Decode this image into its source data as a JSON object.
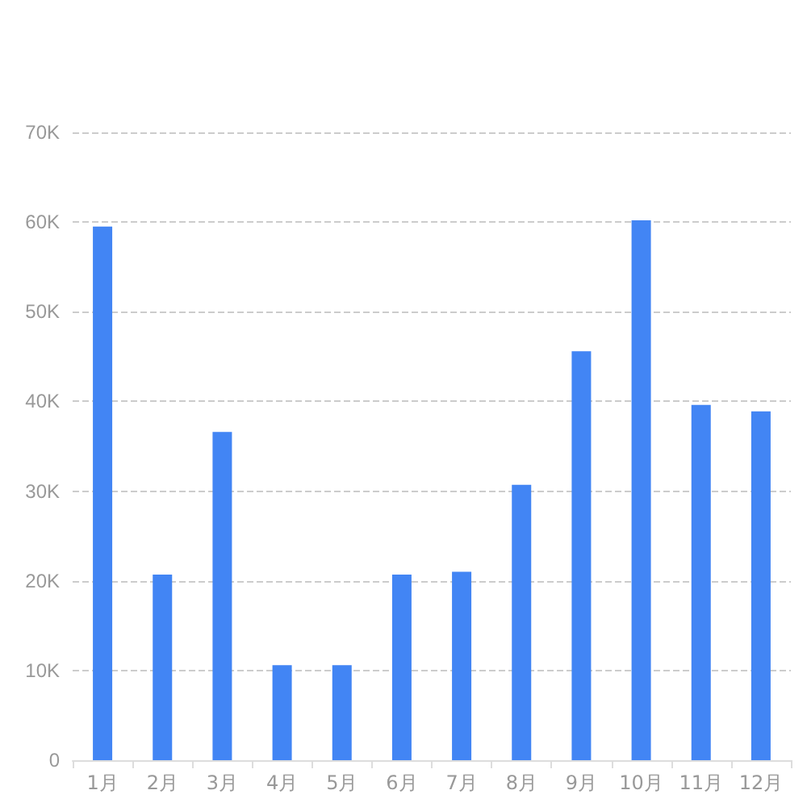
{
  "chart_data": {
    "type": "bar",
    "categories": [
      "1月",
      "2月",
      "3月",
      "4月",
      "5月",
      "6月",
      "7月",
      "8月",
      "9月",
      "10月",
      "11月",
      "12月"
    ],
    "values": [
      59500,
      20700,
      36600,
      10600,
      10600,
      20700,
      21000,
      30700,
      45600,
      60200,
      39600,
      38900
    ],
    "color": "#4285f4",
    "ylim": [
      0,
      70000
    ],
    "yticks": [
      {
        "value": 0,
        "label": "0"
      },
      {
        "value": 10000,
        "label": "10K"
      },
      {
        "value": 20000,
        "label": "20K"
      },
      {
        "value": 30000,
        "label": "30K"
      },
      {
        "value": 40000,
        "label": "40K"
      },
      {
        "value": 50000,
        "label": "50K"
      },
      {
        "value": 60000,
        "label": "60K"
      },
      {
        "value": 70000,
        "label": "70K"
      }
    ],
    "grid": "y"
  }
}
